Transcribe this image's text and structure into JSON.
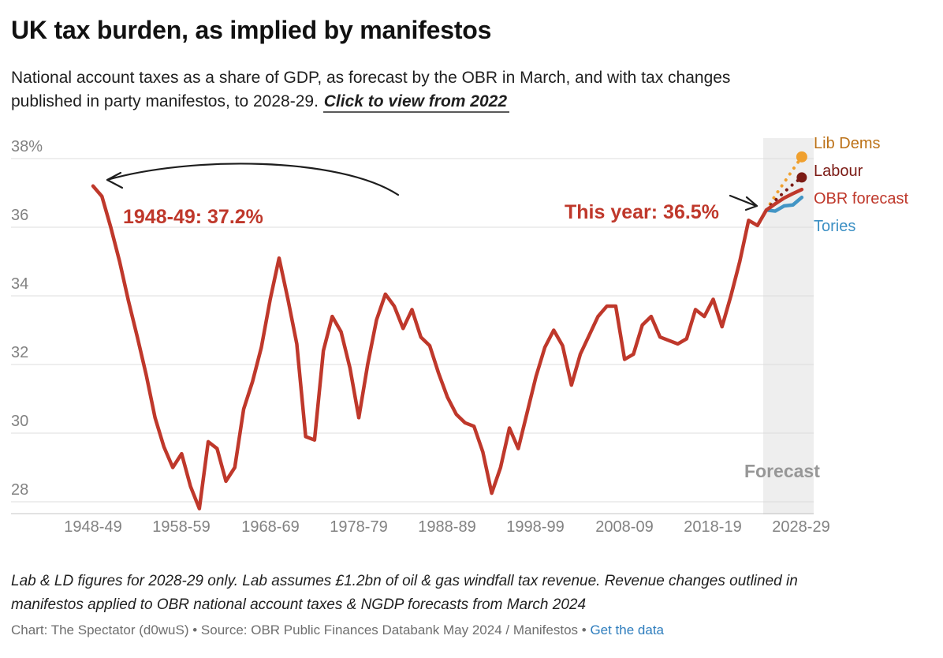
{
  "header": {
    "title": "UK tax burden, as implied by manifestos",
    "subtitle_line1": "National account taxes as a share of GDP, as forecast by the OBR in March, and with tax changes",
    "subtitle_line2": "published in party manifestos, to 2028-29.",
    "subtitle_link": "Click to view from 2022"
  },
  "chart_data": {
    "type": "line",
    "title": "UK tax burden, as implied by manifestos",
    "unit": "% of GDP",
    "ylim": [
      27.5,
      38.3
    ],
    "yticks": [
      38,
      36,
      34,
      32,
      30,
      28
    ],
    "ytick_labels": [
      "38%",
      "36",
      "34",
      "32",
      "30",
      "28"
    ],
    "xtick_labels": [
      "1948-49",
      "1958-59",
      "1968-69",
      "1978-79",
      "1988-89",
      "1998-99",
      "2008-09",
      "2018-19",
      "2028-29"
    ],
    "x_first": "1948-49",
    "x_step": "1 fiscal year",
    "history": {
      "name": "National account taxes, % of GDP (outturn + current year)",
      "first_year": "1948-49",
      "last_year": "2023-24",
      "values": [
        37.2,
        36.9,
        36.0,
        35.0,
        33.85,
        32.8,
        31.7,
        30.45,
        29.6,
        29.0,
        29.4,
        28.45,
        27.8,
        29.75,
        29.55,
        28.6,
        29.0,
        30.7,
        31.5,
        32.5,
        33.9,
        35.1,
        33.9,
        32.6,
        29.9,
        29.8,
        32.4,
        33.4,
        32.95,
        31.9,
        30.45,
        32.0,
        33.3,
        34.05,
        33.7,
        33.05,
        33.6,
        32.8,
        32.55,
        31.75,
        31.05,
        30.55,
        30.3,
        30.2,
        29.45,
        28.25,
        29.0,
        30.15,
        29.55,
        30.6,
        31.65,
        32.5,
        33.0,
        32.55,
        31.4,
        32.3,
        32.85,
        33.4,
        33.7,
        33.7,
        32.15,
        32.3,
        33.15,
        33.4,
        32.8,
        32.7,
        32.6,
        32.75,
        33.6,
        33.4,
        33.9,
        33.1,
        34.0,
        35.0,
        36.2,
        36.05
      ]
    },
    "forecast": {
      "first_year": "2024-25",
      "last_year": "2028-29",
      "region": "shaded band labelled Forecast",
      "series": [
        {
          "name": "Lib Dems",
          "style": "dotted",
          "color": "#f0a02e",
          "label_color": "#bc7218",
          "end_dot": true,
          "values": [
            36.5,
            36.92,
            37.3,
            37.68,
            38.05
          ]
        },
        {
          "name": "Labour",
          "style": "dotted",
          "color": "#7b1a14",
          "label_color": "#7b1a14",
          "end_dot": true,
          "values": [
            36.5,
            36.78,
            37.02,
            37.25,
            37.45
          ]
        },
        {
          "name": "OBR forecast",
          "style": "solid",
          "color": "#bf382b",
          "label_color": "#bf382b",
          "end_dot": false,
          "values": [
            36.5,
            36.68,
            36.85,
            36.98,
            37.1
          ]
        },
        {
          "name": "Tories",
          "style": "solid",
          "color": "#4295c5",
          "label_color": "#3c90c4",
          "end_dot": false,
          "values": [
            36.5,
            36.47,
            36.62,
            36.65,
            36.87
          ]
        }
      ]
    },
    "annotations": [
      {
        "text": "1948-49: 37.2%",
        "points_to": "1948-49 peak"
      },
      {
        "text": "This year: 36.5%",
        "points_to": "2024-25"
      },
      {
        "text": "Forecast",
        "points_to": "forecast band"
      }
    ],
    "legend_position": "right of forecast band",
    "grid": true,
    "palette": {
      "band": "#eeeeee",
      "grid": "#dcdcdc",
      "axis_line": "#c4c4c4",
      "arrow": "#1e1e1e",
      "annotation_red": "#bf382b",
      "axis_text": "#828282",
      "forecast_label": "#979797"
    }
  },
  "footer": {
    "note_line1": "Lab & LD figures for 2028-29 only. Lab assumes £1.2bn of oil & gas windfall tax revenue. Revenue changes outlined in",
    "note_line2": "manifestos applied to OBR national account taxes & NGDP forecasts from March 2024",
    "credit_prefix": "Chart: The Spectator (d0wuS) • Source: OBR Public Finances Databank May 2024 / Manifestos • ",
    "credit_link": "Get the data"
  }
}
